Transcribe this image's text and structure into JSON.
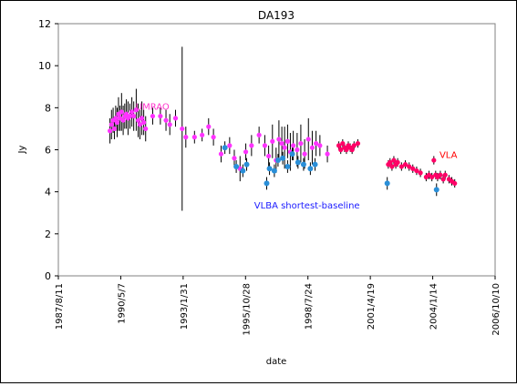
{
  "chart_data": {
    "type": "scatter",
    "title": "DA193",
    "xlabel": "date",
    "ylabel": "Jy",
    "ylim": [
      0,
      12
    ],
    "yticks": [
      0,
      2,
      4,
      6,
      8,
      10,
      12
    ],
    "xlim": [
      "1987-08-11",
      "2006-10-10"
    ],
    "xtick_labels": [
      "1987/8/11",
      "1990/5/7",
      "1993/1/31",
      "1995/10/28",
      "1998/7/24",
      "2001/4/19",
      "2004/1/14",
      "2006/10/10"
    ],
    "xtick_dates": [
      "1987-08-11",
      "1990-05-07",
      "1993-01-31",
      "1995-10-28",
      "1998-07-24",
      "2001-04-19",
      "2004-01-14",
      "2006-10-10"
    ],
    "grid": false,
    "annotations": [
      {
        "text": "UMRAO",
        "color": "#ff33cc",
        "x": "1991-01-01",
        "y": 7.9
      },
      {
        "text": "VLBA shortest-baseline",
        "color": "#1a1aff",
        "x": "1996-03-15",
        "y": 3.2
      },
      {
        "text": "VLA",
        "color": "#ff0000",
        "x": "2004-05-01",
        "y": 5.6
      }
    ],
    "series": [
      {
        "name": "UMRAO",
        "color": "#ff33ff",
        "marker_size": 2.6,
        "points": [
          {
            "x": "1989-11-15",
            "y": 6.9,
            "err": 0.6
          },
          {
            "x": "1989-12-10",
            "y": 7.2,
            "err": 0.7
          },
          {
            "x": "1990-01-05",
            "y": 7.4,
            "err": 0.6
          },
          {
            "x": "1990-01-25",
            "y": 7.0,
            "err": 0.5
          },
          {
            "x": "1990-02-15",
            "y": 7.5,
            "err": 0.6
          },
          {
            "x": "1990-03-10",
            "y": 7.3,
            "err": 0.7
          },
          {
            "x": "1990-04-01",
            "y": 7.7,
            "err": 0.8
          },
          {
            "x": "1990-04-25",
            "y": 7.5,
            "err": 0.6
          },
          {
            "x": "1990-05-20",
            "y": 7.8,
            "err": 0.9
          },
          {
            "x": "1990-06-15",
            "y": 7.4,
            "err": 0.7
          },
          {
            "x": "1990-07-10",
            "y": 7.6,
            "err": 0.6
          },
          {
            "x": "1990-08-05",
            "y": 7.7,
            "err": 0.7
          },
          {
            "x": "1990-09-01",
            "y": 7.5,
            "err": 0.8
          },
          {
            "x": "1990-10-01",
            "y": 7.6,
            "err": 0.6
          },
          {
            "x": "1990-11-01",
            "y": 7.8,
            "err": 0.7
          },
          {
            "x": "1990-12-01",
            "y": 7.6,
            "err": 0.7
          },
          {
            "x": "1991-01-10",
            "y": 7.9,
            "err": 1.0
          },
          {
            "x": "1991-02-10",
            "y": 7.4,
            "err": 0.8
          },
          {
            "x": "1991-03-10",
            "y": 7.2,
            "err": 0.7
          },
          {
            "x": "1991-04-10",
            "y": 7.5,
            "err": 0.8
          },
          {
            "x": "1991-05-10",
            "y": 7.3,
            "err": 0.6
          },
          {
            "x": "1991-06-10",
            "y": 7.0,
            "err": 0.6
          },
          {
            "x": "1991-10-01",
            "y": 7.6,
            "err": 0.4
          },
          {
            "x": "1992-02-01",
            "y": 7.6,
            "err": 0.4
          },
          {
            "x": "1992-05-01",
            "y": 7.4,
            "err": 0.5
          },
          {
            "x": "1992-07-01",
            "y": 7.2,
            "err": 0.5
          },
          {
            "x": "1992-10-01",
            "y": 7.5,
            "err": 0.4
          },
          {
            "x": "1993-01-15",
            "y": 7.0,
            "err": 3.9
          },
          {
            "x": "1993-03-15",
            "y": 6.6,
            "err": 0.5
          },
          {
            "x": "1993-08-01",
            "y": 6.6,
            "err": 0.3
          },
          {
            "x": "1993-12-01",
            "y": 6.7,
            "err": 0.3
          },
          {
            "x": "1994-03-15",
            "y": 7.1,
            "err": 0.4
          },
          {
            "x": "1994-06-01",
            "y": 6.6,
            "err": 0.4
          },
          {
            "x": "1994-10-01",
            "y": 5.8,
            "err": 0.4
          },
          {
            "x": "1995-02-15",
            "y": 6.2,
            "err": 0.4
          },
          {
            "x": "1995-05-01",
            "y": 5.6,
            "err": 0.4
          },
          {
            "x": "1995-08-01",
            "y": 5.1,
            "err": 0.6
          },
          {
            "x": "1995-11-01",
            "y": 5.9,
            "err": 0.4
          },
          {
            "x": "1996-02-01",
            "y": 6.2,
            "err": 0.5
          },
          {
            "x": "1996-06-01",
            "y": 6.7,
            "err": 0.4
          },
          {
            "x": "1996-09-01",
            "y": 6.2,
            "err": 0.5
          },
          {
            "x": "1996-11-01",
            "y": 5.7,
            "err": 0.5
          },
          {
            "x": "1997-01-01",
            "y": 6.4,
            "err": 0.8
          },
          {
            "x": "1997-03-01",
            "y": 5.5,
            "err": 0.6
          },
          {
            "x": "1997-04-15",
            "y": 6.5,
            "err": 0.9
          },
          {
            "x": "1997-06-01",
            "y": 6.3,
            "err": 0.8
          },
          {
            "x": "1997-07-15",
            "y": 6.1,
            "err": 1.0
          },
          {
            "x": "1997-09-01",
            "y": 6.4,
            "err": 0.8
          },
          {
            "x": "1997-10-15",
            "y": 5.9,
            "err": 0.9
          },
          {
            "x": "1997-12-01",
            "y": 6.2,
            "err": 0.7
          },
          {
            "x": "1998-02-01",
            "y": 6.0,
            "err": 0.8
          },
          {
            "x": "1998-04-01",
            "y": 6.3,
            "err": 0.9
          },
          {
            "x": "1998-06-01",
            "y": 5.8,
            "err": 0.7
          },
          {
            "x": "1998-08-01",
            "y": 6.5,
            "err": 1.0
          },
          {
            "x": "1998-10-01",
            "y": 6.1,
            "err": 0.8
          },
          {
            "x": "1998-12-01",
            "y": 6.3,
            "err": 0.6
          },
          {
            "x": "1999-02-01",
            "y": 6.2,
            "err": 0.5
          },
          {
            "x": "1999-06-01",
            "y": 5.8,
            "err": 0.4
          }
        ]
      },
      {
        "name": "VLBA shortest-baseline",
        "color": "#2a8fd8",
        "marker_size": 3.0,
        "points": [
          {
            "x": "1994-12-01",
            "y": 6.1,
            "err": 0.3
          },
          {
            "x": "1995-06-01",
            "y": 5.2,
            "err": 0.3
          },
          {
            "x": "1995-09-15",
            "y": 5.0,
            "err": 0.3
          },
          {
            "x": "1995-11-15",
            "y": 5.3,
            "err": 0.3
          },
          {
            "x": "1996-10-01",
            "y": 4.4,
            "err": 0.3
          },
          {
            "x": "1996-11-15",
            "y": 5.1,
            "err": 0.3
          },
          {
            "x": "1997-02-01",
            "y": 5.0,
            "err": 0.3
          },
          {
            "x": "1997-04-01",
            "y": 5.5,
            "err": 0.3
          },
          {
            "x": "1997-06-15",
            "y": 5.6,
            "err": 0.3
          },
          {
            "x": "1997-09-01",
            "y": 5.2,
            "err": 0.3
          },
          {
            "x": "1997-11-15",
            "y": 5.8,
            "err": 0.3
          },
          {
            "x": "1998-02-15",
            "y": 5.4,
            "err": 0.3
          },
          {
            "x": "1998-05-15",
            "y": 5.3,
            "err": 0.3
          },
          {
            "x": "1998-09-01",
            "y": 5.1,
            "err": 0.3
          },
          {
            "x": "1998-11-15",
            "y": 5.3,
            "err": 0.3
          },
          {
            "x": "2002-01-15",
            "y": 4.4,
            "err": 0.3
          },
          {
            "x": "2004-03-15",
            "y": 4.1,
            "err": 0.3
          }
        ]
      },
      {
        "name": "VLA",
        "color": "#ff0066",
        "marker_size": 2.6,
        "points": [
          {
            "x": "1999-12-01",
            "y": 6.2,
            "err": 0.2
          },
          {
            "x": "2000-01-01",
            "y": 6.0,
            "err": 0.2
          },
          {
            "x": "2000-02-01",
            "y": 6.3,
            "err": 0.2
          },
          {
            "x": "2000-03-01",
            "y": 6.1,
            "err": 0.2
          },
          {
            "x": "2000-04-01",
            "y": 6.0,
            "err": 0.2
          },
          {
            "x": "2000-05-01",
            "y": 6.2,
            "err": 0.2
          },
          {
            "x": "2000-06-01",
            "y": 6.1,
            "err": 0.2
          },
          {
            "x": "2000-07-01",
            "y": 6.0,
            "err": 0.2
          },
          {
            "x": "2000-08-01",
            "y": 6.2,
            "err": 0.2
          },
          {
            "x": "2000-10-01",
            "y": 6.3,
            "err": 0.2
          },
          {
            "x": "2002-02-01",
            "y": 5.3,
            "err": 0.2
          },
          {
            "x": "2002-03-01",
            "y": 5.4,
            "err": 0.2
          },
          {
            "x": "2002-04-01",
            "y": 5.2,
            "err": 0.2
          },
          {
            "x": "2002-05-01",
            "y": 5.5,
            "err": 0.2
          },
          {
            "x": "2002-06-01",
            "y": 5.3,
            "err": 0.2
          },
          {
            "x": "2002-07-01",
            "y": 5.4,
            "err": 0.2
          },
          {
            "x": "2002-09-01",
            "y": 5.2,
            "err": 0.2
          },
          {
            "x": "2002-11-01",
            "y": 5.3,
            "err": 0.2
          },
          {
            "x": "2003-01-01",
            "y": 5.2,
            "err": 0.2
          },
          {
            "x": "2003-03-01",
            "y": 5.1,
            "err": 0.2
          },
          {
            "x": "2003-05-01",
            "y": 5.0,
            "err": 0.2
          },
          {
            "x": "2003-07-01",
            "y": 4.9,
            "err": 0.2
          },
          {
            "x": "2003-10-01",
            "y": 4.7,
            "err": 0.2
          },
          {
            "x": "2003-11-15",
            "y": 4.8,
            "err": 0.2
          },
          {
            "x": "2004-01-01",
            "y": 4.7,
            "err": 0.2
          },
          {
            "x": "2004-02-01",
            "y": 5.5,
            "err": 0.2
          },
          {
            "x": "2004-03-01",
            "y": 4.8,
            "err": 0.2
          },
          {
            "x": "2004-04-01",
            "y": 4.7,
            "err": 0.2
          },
          {
            "x": "2004-05-15",
            "y": 4.8,
            "err": 0.2
          },
          {
            "x": "2004-07-01",
            "y": 4.6,
            "err": 0.2
          },
          {
            "x": "2004-08-01",
            "y": 4.8,
            "err": 0.2
          },
          {
            "x": "2004-10-01",
            "y": 4.6,
            "err": 0.2
          },
          {
            "x": "2004-11-15",
            "y": 4.5,
            "err": 0.2
          },
          {
            "x": "2005-01-01",
            "y": 4.4,
            "err": 0.2
          }
        ]
      }
    ]
  }
}
